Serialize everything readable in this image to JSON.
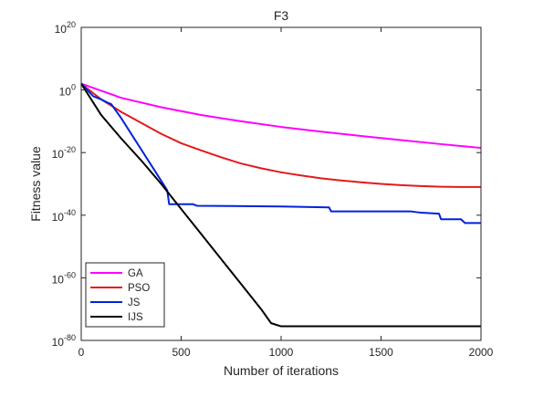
{
  "chart_data": {
    "type": "line",
    "title": "F3",
    "xlabel": "Number of iterations",
    "ylabel": "Fitness value",
    "xlim": [
      0,
      2000
    ],
    "ylim_exponent": [
      -80,
      20
    ],
    "yscale": "log",
    "y_base": "10",
    "x_ticks": [
      "0",
      "500",
      "1000",
      "1500",
      "2000"
    ],
    "y_tick_exponents": [
      "20",
      "0",
      "-20",
      "-40",
      "-60",
      "-80"
    ],
    "grid": false,
    "legend_position": "bottom-left",
    "series": [
      {
        "name": "GA",
        "color": "#ff00ff",
        "log10_points": [
          [
            0,
            2
          ],
          [
            200,
            -2.5
          ],
          [
            400,
            -5.5
          ],
          [
            600,
            -8
          ],
          [
            800,
            -10
          ],
          [
            1000,
            -11.8
          ],
          [
            1200,
            -13.3
          ],
          [
            1400,
            -14.7
          ],
          [
            1600,
            -16
          ],
          [
            1800,
            -17.3
          ],
          [
            2000,
            -18.5
          ]
        ]
      },
      {
        "name": "PSO",
        "color": "#e31a1c",
        "log10_points": [
          [
            0,
            2
          ],
          [
            100,
            -3
          ],
          [
            200,
            -7
          ],
          [
            300,
            -10.5
          ],
          [
            400,
            -14
          ],
          [
            500,
            -17
          ],
          [
            600,
            -19.3
          ],
          [
            700,
            -21.5
          ],
          [
            800,
            -23.5
          ],
          [
            900,
            -25
          ],
          [
            1000,
            -26.3
          ],
          [
            1100,
            -27.3
          ],
          [
            1200,
            -28.2
          ],
          [
            1300,
            -28.9
          ],
          [
            1400,
            -29.5
          ],
          [
            1500,
            -30
          ],
          [
            1600,
            -30.4
          ],
          [
            1700,
            -30.7
          ],
          [
            1800,
            -30.9
          ],
          [
            1900,
            -31
          ],
          [
            2000,
            -31
          ]
        ]
      },
      {
        "name": "JS",
        "color": "#0022dd",
        "log10_points": [
          [
            0,
            2
          ],
          [
            60,
            -2
          ],
          [
            100,
            -3
          ],
          [
            130,
            -4
          ],
          [
            150,
            -4.5
          ],
          [
            200,
            -9
          ],
          [
            260,
            -15
          ],
          [
            300,
            -19
          ],
          [
            360,
            -25
          ],
          [
            400,
            -29
          ],
          [
            430,
            -32
          ],
          [
            440,
            -36.5
          ],
          [
            560,
            -36.5
          ],
          [
            580,
            -37
          ],
          [
            1000,
            -37.2
          ],
          [
            1240,
            -37.5
          ],
          [
            1250,
            -38.8
          ],
          [
            1650,
            -38.8
          ],
          [
            1700,
            -39.2
          ],
          [
            1790,
            -39.5
          ],
          [
            1800,
            -41.3
          ],
          [
            1900,
            -41.3
          ],
          [
            1920,
            -42.5
          ],
          [
            2000,
            -42.5
          ]
        ]
      },
      {
        "name": "IJS",
        "color": "#000000",
        "log10_points": [
          [
            0,
            2
          ],
          [
            100,
            -8
          ],
          [
            200,
            -15.5
          ],
          [
            300,
            -22.5
          ],
          [
            400,
            -30
          ],
          [
            500,
            -38
          ],
          [
            600,
            -46
          ],
          [
            700,
            -54
          ],
          [
            800,
            -62
          ],
          [
            900,
            -70
          ],
          [
            950,
            -74.5
          ],
          [
            1000,
            -75.5
          ],
          [
            1100,
            -75.5
          ],
          [
            1500,
            -75.5
          ],
          [
            2000,
            -75.5
          ]
        ]
      }
    ]
  }
}
